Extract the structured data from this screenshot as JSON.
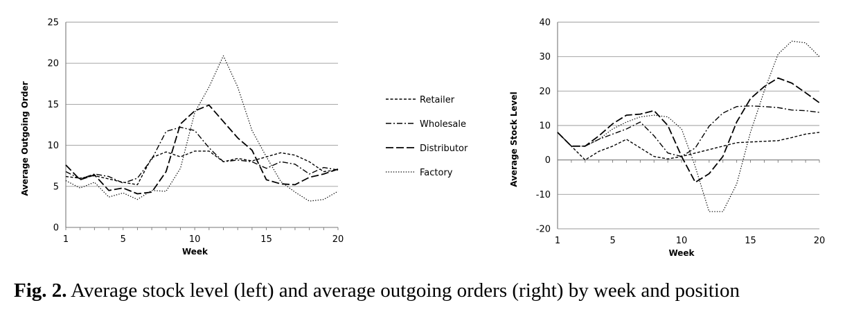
{
  "caption": {
    "label": "Fig. 2.",
    "text": " Average stock level (left) and average outgoing orders (right) by week and position"
  },
  "legend": {
    "entries": [
      "Retailer",
      "Wholesale",
      "Distributor",
      "Factory"
    ],
    "placement": "center, between charts"
  },
  "chart_data": [
    {
      "type": "line",
      "xlabel": "Week",
      "ylabel": "Average Outgoing Order",
      "xlim": [
        1,
        20
      ],
      "ylim": [
        0,
        25
      ],
      "xticks": [
        1,
        5,
        10,
        15,
        20
      ],
      "yticks": [
        0,
        5,
        10,
        15,
        20,
        25
      ],
      "grid": "horizontal",
      "x": [
        1,
        2,
        3,
        4,
        5,
        6,
        7,
        8,
        9,
        10,
        11,
        12,
        13,
        14,
        15,
        16,
        17,
        18,
        19,
        20
      ],
      "series": [
        {
          "name": "Retailer",
          "style": "dashed-short",
          "values": [
            6.2,
            6.0,
            6.3,
            5.9,
            5.5,
            5.2,
            8.5,
            9.2,
            8.6,
            9.3,
            9.3,
            8.0,
            8.4,
            8.1,
            8.6,
            9.1,
            8.8,
            8.0,
            6.8,
            7.0
          ]
        },
        {
          "name": "Wholesale",
          "style": "dash-dot",
          "values": [
            6.8,
            5.9,
            6.5,
            6.2,
            5.4,
            6.0,
            8.3,
            11.7,
            12.2,
            11.8,
            9.7,
            8.0,
            8.2,
            8.0,
            7.2,
            8.0,
            7.7,
            6.5,
            7.3,
            7.0
          ]
        },
        {
          "name": "Distributor",
          "style": "dashed-long",
          "values": [
            7.6,
            5.8,
            6.4,
            4.5,
            4.8,
            4.1,
            4.3,
            6.8,
            12.6,
            14.2,
            14.9,
            12.9,
            10.9,
            9.4,
            5.8,
            5.3,
            5.2,
            6.1,
            6.5,
            7.1
          ]
        },
        {
          "name": "Factory",
          "style": "dotted",
          "values": [
            5.7,
            4.8,
            5.5,
            3.7,
            4.2,
            3.4,
            4.5,
            4.4,
            7.2,
            14.0,
            17.1,
            20.9,
            17.1,
            11.8,
            8.6,
            5.6,
            4.3,
            3.2,
            3.4,
            4.4
          ]
        }
      ]
    },
    {
      "type": "line",
      "xlabel": "Week",
      "ylabel": "Average Stock Level",
      "xlim": [
        1,
        20
      ],
      "ylim": [
        -20,
        40
      ],
      "xticks": [
        1,
        5,
        10,
        15,
        20
      ],
      "yticks": [
        -20,
        -10,
        0,
        10,
        20,
        30,
        40
      ],
      "grid": "horizontal",
      "x": [
        1,
        2,
        3,
        4,
        5,
        6,
        7,
        8,
        9,
        10,
        11,
        12,
        13,
        14,
        15,
        16,
        17,
        18,
        19,
        20
      ],
      "series": [
        {
          "name": "Retailer",
          "style": "dashed-short",
          "values": [
            8,
            4,
            0,
            2.5,
            4,
            6,
            3.5,
            1,
            0.3,
            1,
            2,
            3,
            4,
            5,
            5.2,
            5.4,
            5.6,
            6.5,
            7.5,
            8
          ]
        },
        {
          "name": "Wholesale",
          "style": "dash-dot",
          "values": [
            8,
            4,
            4,
            6,
            7.5,
            9,
            11,
            7,
            2,
            1,
            3.5,
            9.8,
            13.6,
            15.5,
            15.7,
            15.5,
            15.2,
            14.5,
            14.3,
            13.8
          ]
        },
        {
          "name": "Distributor",
          "style": "dashed-long",
          "values": [
            8,
            4,
            4,
            7,
            10.5,
            13,
            13.3,
            14.3,
            10,
            1,
            -6.5,
            -4,
            1,
            11,
            17.8,
            21.3,
            23.8,
            22.3,
            19.5,
            16.6
          ]
        },
        {
          "name": "Factory",
          "style": "dotted",
          "values": [
            8,
            4,
            4,
            6,
            9,
            11,
            12.5,
            13,
            12.5,
            9,
            -2,
            -15,
            -15,
            -7,
            8,
            20,
            30.7,
            34.5,
            34,
            30
          ]
        }
      ]
    }
  ]
}
